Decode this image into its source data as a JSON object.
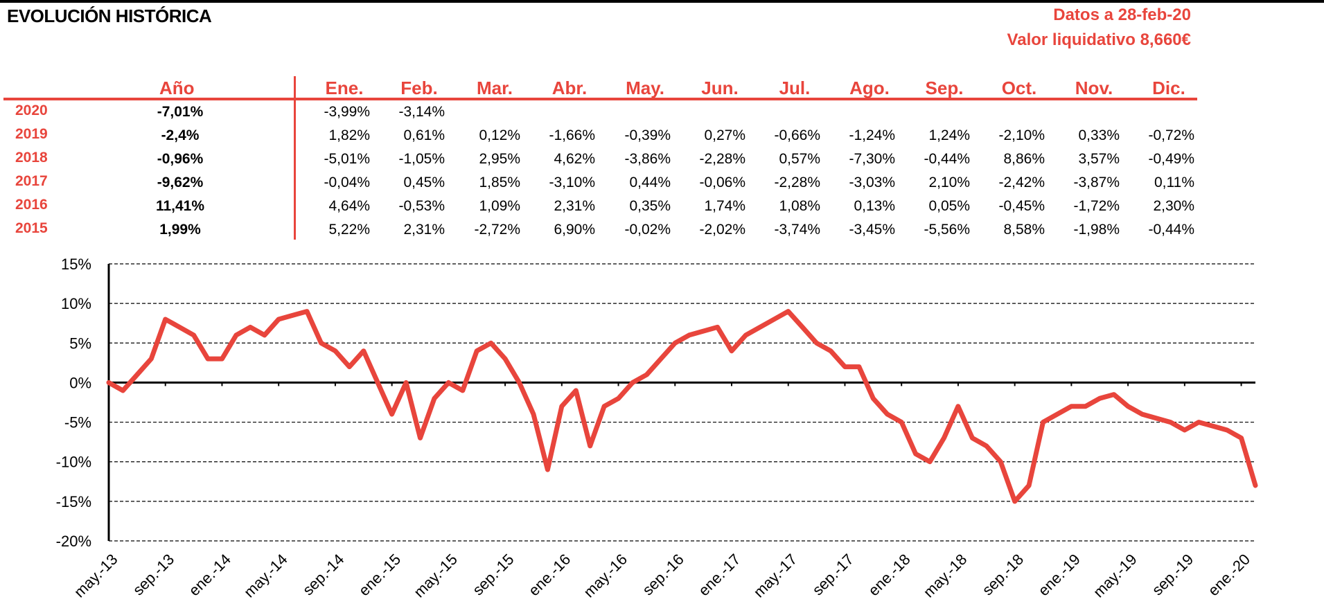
{
  "header": {
    "title": "EVOLUCIÓN HISTÓRICA",
    "datos": "Datos a 28-feb-20",
    "valor": "Valor liquidativo 8,660€"
  },
  "table": {
    "year_header": "Año",
    "months": [
      "Ene.",
      "Feb.",
      "Mar.",
      "Abr.",
      "May.",
      "Jun.",
      "Jul.",
      "Ago.",
      "Sep.",
      "Oct.",
      "Nov.",
      "Dic."
    ],
    "rows": [
      {
        "year": "2020",
        "annual": "-7,01%",
        "months": [
          "-3,99%",
          "-3,14%",
          "",
          "",
          "",
          "",
          "",
          "",
          "",
          "",
          "",
          ""
        ]
      },
      {
        "year": "2019",
        "annual": "-2,4%",
        "months": [
          "1,82%",
          "0,61%",
          "0,12%",
          "-1,66%",
          "-0,39%",
          "0,27%",
          "-0,66%",
          "-1,24%",
          "1,24%",
          "-2,10%",
          "0,33%",
          "-0,72%"
        ]
      },
      {
        "year": "2018",
        "annual": "-0,96%",
        "months": [
          "-5,01%",
          "-1,05%",
          "2,95%",
          "4,62%",
          "-3,86%",
          "-2,28%",
          "0,57%",
          "-7,30%",
          "-0,44%",
          "8,86%",
          "3,57%",
          "-0,49%"
        ]
      },
      {
        "year": "2017",
        "annual": "-9,62%",
        "months": [
          "-0,04%",
          "0,45%",
          "1,85%",
          "-3,10%",
          "0,44%",
          "-0,06%",
          "-2,28%",
          "-3,03%",
          "2,10%",
          "-2,42%",
          "-3,87%",
          "0,11%"
        ]
      },
      {
        "year": "2016",
        "annual": "11,41%",
        "months": [
          "4,64%",
          "-0,53%",
          "1,09%",
          "2,31%",
          "0,35%",
          "1,74%",
          "1,08%",
          "0,13%",
          "0,05%",
          "-0,45%",
          "-1,72%",
          "2,30%"
        ]
      },
      {
        "year": "2015",
        "annual": "1,99%",
        "months": [
          "5,22%",
          "2,31%",
          "-2,72%",
          "6,90%",
          "-0,02%",
          "-2,02%",
          "-3,74%",
          "-3,45%",
          "-5,56%",
          "8,58%",
          "-1,98%",
          "-0,44%"
        ]
      }
    ]
  },
  "chart_data": {
    "type": "line",
    "title": "",
    "xlabel": "",
    "ylabel": "",
    "ylim": [
      -20,
      15
    ],
    "yticks": [
      15,
      10,
      5,
      0,
      -5,
      -10,
      -15,
      -20
    ],
    "ytick_labels": [
      "15%",
      "10%",
      "5%",
      "0%",
      "-5%",
      "-10%",
      "-15%",
      "-20%"
    ],
    "xtick_labels": [
      "may.-13",
      "sep.-13",
      "ene.-14",
      "may.-14",
      "sep.-14",
      "ene.-15",
      "may.-15",
      "sep.-15",
      "ene.-16",
      "may.-16",
      "sep.-16",
      "ene.-17",
      "may.-17",
      "sep.-17",
      "ene.-18",
      "may.-18",
      "sep.-18",
      "ene.-19",
      "may.-19",
      "sep.-19",
      "ene.-20"
    ],
    "x_range": [
      "may.-13",
      "feb.-20"
    ],
    "grid": "horizontal dashed",
    "line_color": "#e8453c",
    "series": [
      {
        "x": [
          "may.-13",
          "jun.-13",
          "jul.-13",
          "ago.-13",
          "sep.-13",
          "oct.-13",
          "nov.-13",
          "dic.-13",
          "ene.-14",
          "feb.-14",
          "mar.-14",
          "abr.-14",
          "may.-14",
          "jun.-14",
          "jul.-14",
          "ago.-14",
          "sep.-14",
          "oct.-14",
          "nov.-14",
          "dic.-14",
          "ene.-15",
          "feb.-15",
          "mar.-15",
          "abr.-15",
          "may.-15",
          "jun.-15",
          "jul.-15",
          "ago.-15",
          "sep.-15",
          "oct.-15",
          "nov.-15",
          "dic.-15",
          "ene.-16",
          "feb.-16",
          "mar.-16",
          "abr.-16",
          "may.-16",
          "jun.-16",
          "jul.-16",
          "ago.-16",
          "sep.-16",
          "oct.-16",
          "nov.-16",
          "dic.-16",
          "ene.-17",
          "feb.-17",
          "mar.-17",
          "abr.-17",
          "may.-17",
          "jun.-17",
          "jul.-17",
          "ago.-17",
          "sep.-17",
          "oct.-17",
          "nov.-17",
          "dic.-17",
          "ene.-18",
          "feb.-18",
          "mar.-18",
          "abr.-18",
          "may.-18",
          "jun.-18",
          "jul.-18",
          "ago.-18",
          "sep.-18",
          "oct.-18",
          "nov.-18",
          "dic.-18",
          "ene.-19",
          "feb.-19",
          "mar.-19",
          "abr.-19",
          "may.-19",
          "jun.-19",
          "jul.-19",
          "ago.-19",
          "sep.-19",
          "oct.-19",
          "nov.-19",
          "dic.-19",
          "ene.-20",
          "feb.-20"
        ],
        "values": [
          0,
          -1,
          1,
          3,
          8,
          7,
          6,
          3,
          3,
          6,
          7,
          6,
          8,
          8.5,
          9,
          5,
          4,
          2,
          4,
          0,
          -4,
          0,
          -7,
          -2,
          0,
          -1,
          4,
          5,
          3,
          0,
          -4,
          -11,
          -3,
          -1,
          -8,
          -3,
          -2,
          0,
          1,
          3,
          5,
          6,
          6.5,
          7,
          4,
          6,
          7,
          8,
          9,
          7,
          5,
          4,
          2,
          2,
          -2,
          -4,
          -5,
          -9,
          -10,
          -7,
          -3,
          -7,
          -8,
          -10,
          -15,
          -13,
          -5,
          -4,
          -3,
          -3,
          -2,
          -1.5,
          -3,
          -4,
          -4.5,
          -5,
          -6,
          -5,
          -5.5,
          -6,
          -7,
          -13
        ]
      }
    ]
  }
}
